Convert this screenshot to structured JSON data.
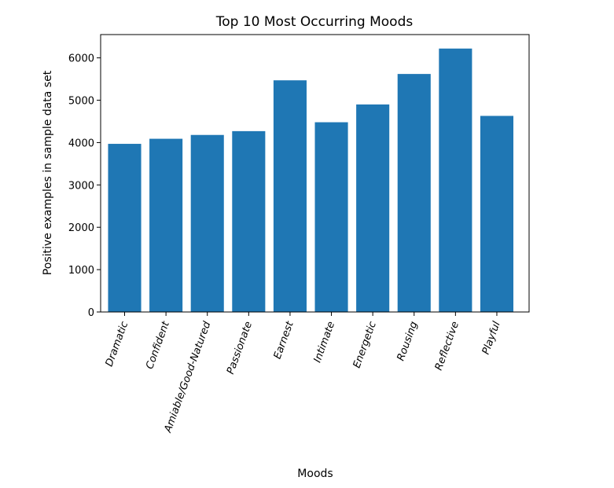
{
  "chart_data": {
    "type": "bar",
    "title": "Top 10 Most Occurring Moods",
    "xlabel": "Moods",
    "ylabel": "Positive examples in sample data set",
    "categories": [
      "Dramatic",
      "Confident",
      "Amiable/Good-Natured",
      "Passionate",
      "Earnest",
      "Intimate",
      "Energetic",
      "Rousing",
      "Reflective",
      "Playful"
    ],
    "values": [
      3970,
      4090,
      4180,
      4270,
      5470,
      4480,
      4900,
      5620,
      6220,
      4630
    ],
    "ylim": [
      0,
      6550
    ],
    "yticks": [
      0,
      1000,
      2000,
      3000,
      4000,
      5000,
      6000
    ],
    "ytick_labels": [
      "0",
      "1000",
      "2000",
      "3000",
      "4000",
      "5000",
      "6000"
    ],
    "bar_color": "#1f77b4",
    "grid": false,
    "legend": "none"
  }
}
